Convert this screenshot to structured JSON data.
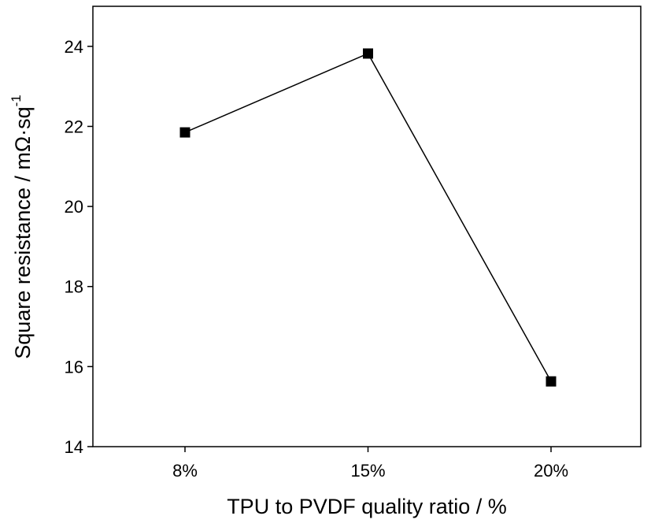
{
  "chart_data": {
    "type": "line",
    "categories": [
      "8%",
      "15%",
      "20%"
    ],
    "series": [
      {
        "values": [
          21.85,
          23.82,
          15.63
        ]
      }
    ],
    "title": "",
    "xlabel": "TPU to PVDF quality ratio / %",
    "ylabel": "Square resistance / mΩ·sq",
    "ylabel_superscript": "-1",
    "ylim": [
      14,
      25
    ],
    "yticks": [
      "14",
      "16",
      "18",
      "20",
      "22",
      "24"
    ],
    "grid": false,
    "legend": "none",
    "marker": "square",
    "line_color": "#000000",
    "marker_color": "#000000"
  }
}
